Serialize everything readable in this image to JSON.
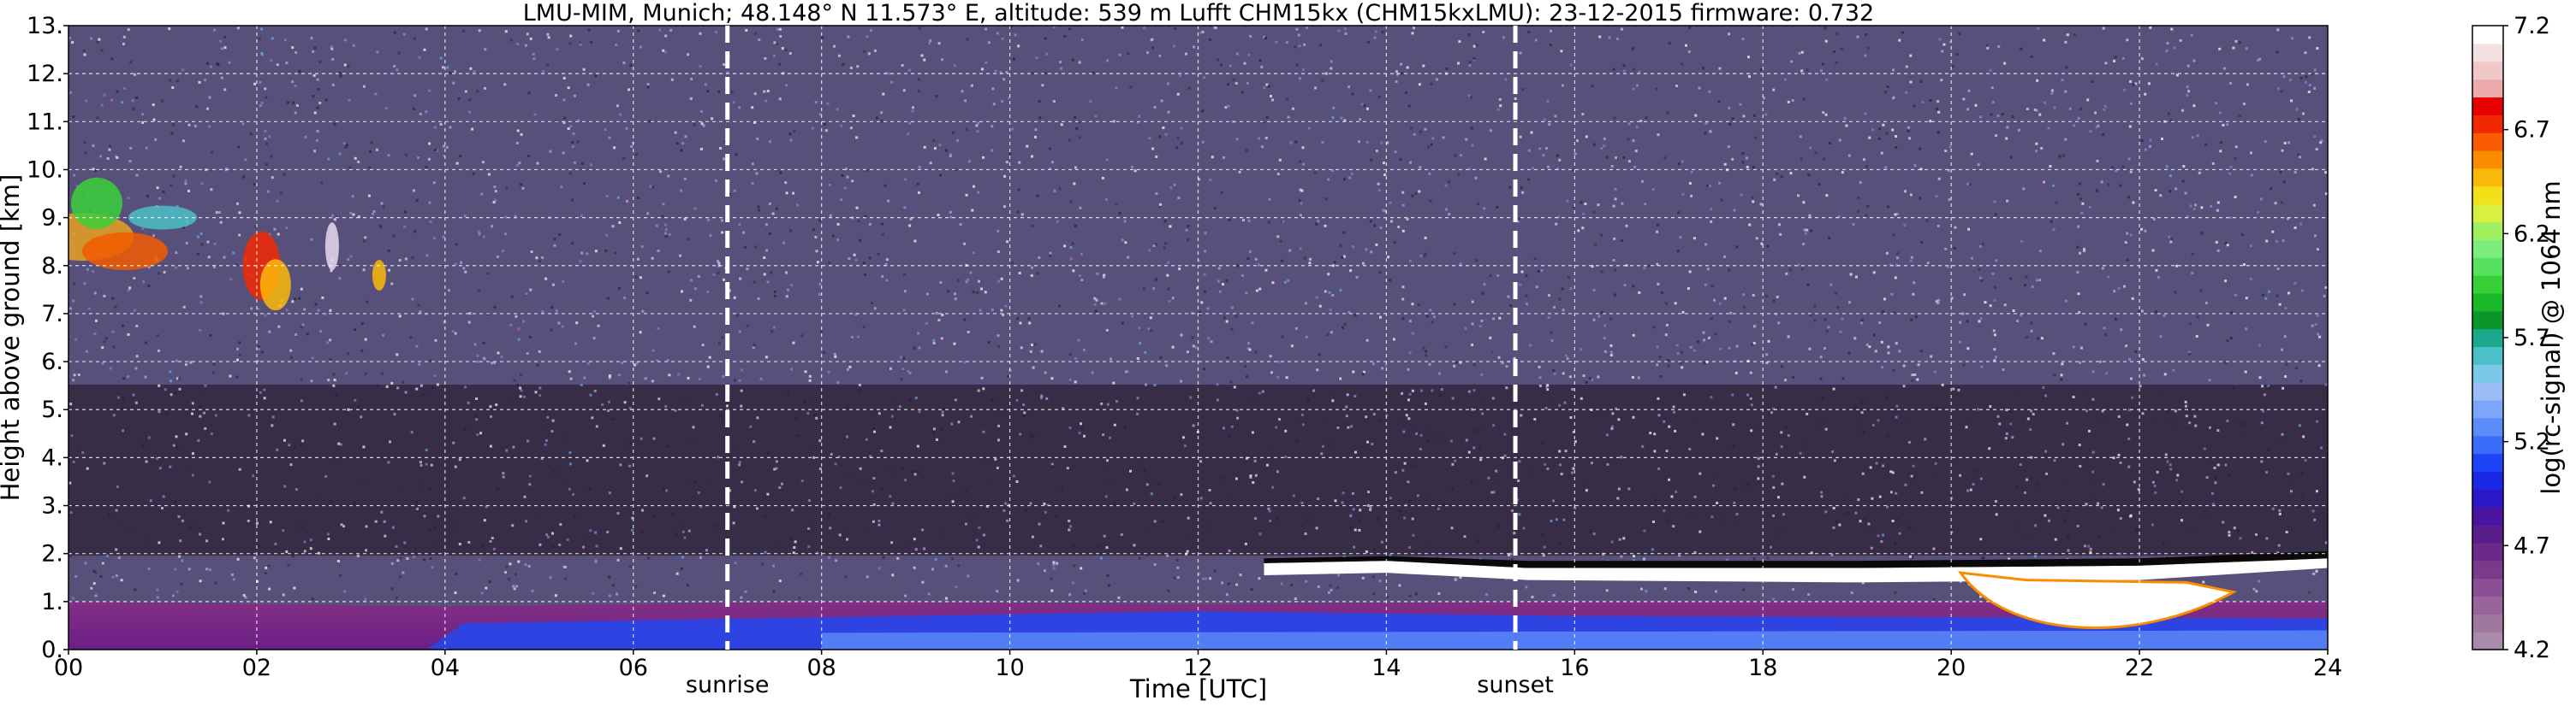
{
  "chart_data": {
    "type": "heatmap",
    "title": "LMU-MIM, Munich; 48.148° N 11.573° E, altitude: 539 m    Lufft CHM15kx (CHM15kxLMU): 23-12-2015    firmware: 0.732",
    "xlabel": "Time [UTC]",
    "ylabel": "Height above ground [km]",
    "x_ticks": [
      "00",
      "02",
      "04",
      "06",
      "08",
      "10",
      "12",
      "14",
      "16",
      "18",
      "20",
      "22",
      "24"
    ],
    "y_ticks": [
      "0.",
      "1.",
      "2.",
      "3.",
      "4.",
      "5.",
      "6.",
      "7.",
      "8.",
      "9.",
      "10.",
      "11.",
      "12.",
      "13."
    ],
    "xlim": [
      0,
      24
    ],
    "ylim": [
      0,
      13
    ],
    "grid": true,
    "colorbar": {
      "label": "log(rc-signal) @ 1064 nm",
      "ticks": [
        "4.2",
        "4.7",
        "5.2",
        "5.7",
        "6.2",
        "6.7",
        "7.2"
      ],
      "range": [
        4.2,
        7.2
      ],
      "colors": [
        "#a88aaa",
        "#a0789e",
        "#98649a",
        "#8c4e94",
        "#7c3a8c",
        "#6c2a88",
        "#5a1e8c",
        "#4a14a0",
        "#2a18c8",
        "#1828e6",
        "#1e44f6",
        "#3c6cfa",
        "#5c8cfa",
        "#7ca6fa",
        "#9cbcf8",
        "#7cc8e8",
        "#4cc0c8",
        "#1ca88c",
        "#0a9628",
        "#18b828",
        "#38d038",
        "#58e060",
        "#7cec7c",
        "#a0f060",
        "#d8f040",
        "#f4e018",
        "#fab808",
        "#fa8c00",
        "#fa5a00",
        "#f22800",
        "#e60000",
        "#ecaaaa",
        "#f0c8c8",
        "#f4e0e0",
        "#ffffff"
      ]
    },
    "annotations": [
      {
        "text": "sunrise",
        "x": 7.0
      },
      {
        "text": "sunset",
        "x": 15.37
      }
    ],
    "features": [
      {
        "kind": "boundary_layer",
        "x_start": 0,
        "x_end": 24,
        "top_km_at_hour": [
          [
            0,
            1.0
          ],
          [
            4,
            0.9
          ],
          [
            8,
            1.0
          ],
          [
            12,
            0.95
          ],
          [
            16,
            1.0
          ],
          [
            20,
            1.0
          ],
          [
            24,
            1.0
          ]
        ]
      },
      {
        "kind": "cloud_layer",
        "x_start": 12.7,
        "x_end": 24,
        "height_km": [
          1.3,
          2.0
        ],
        "value": 7.2
      },
      {
        "kind": "cirrus",
        "x_start": 0,
        "x_end": 3.4,
        "height_km": [
          7.3,
          10.0
        ]
      },
      {
        "kind": "low_cloud",
        "x_start": 20.0,
        "x_end": 23.0,
        "height_km": [
          0.1,
          1.6
        ],
        "value": 7.2
      }
    ]
  }
}
